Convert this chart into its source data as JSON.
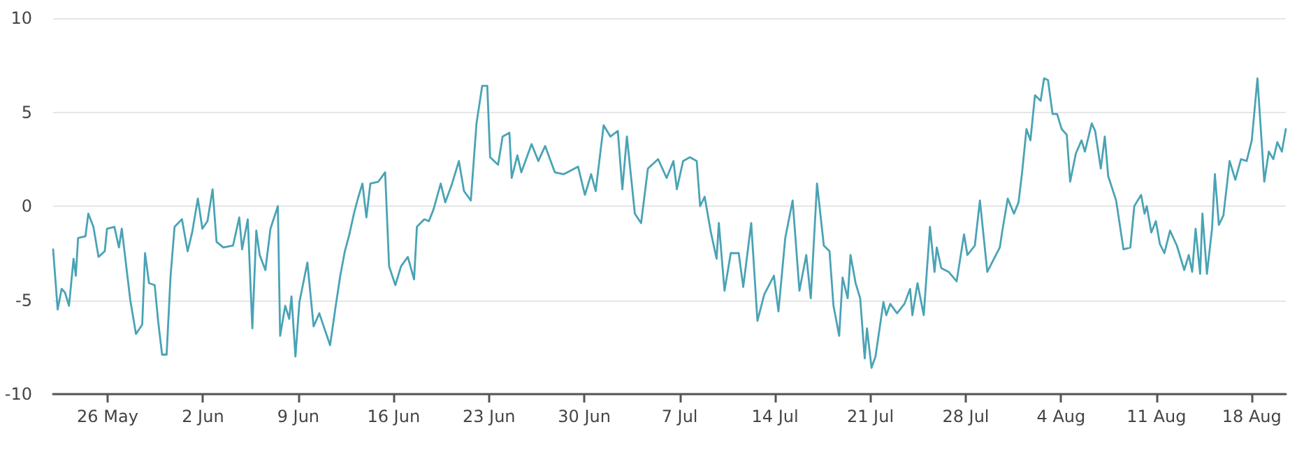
{
  "chart_data": {
    "type": "line",
    "grid": "y",
    "marker": "none",
    "line_style": "solid",
    "xlim": [
      "--05-22T00:00",
      "--08-20T12:00"
    ],
    "xticks": [
      {
        "value": "--05-26",
        "label": "26 May"
      },
      {
        "value": "--06-02",
        "label": "2 Jun"
      },
      {
        "value": "--06-09",
        "label": "9 Jun"
      },
      {
        "value": "--06-16",
        "label": "16 Jun"
      },
      {
        "value": "--06-23",
        "label": "23 Jun"
      },
      {
        "value": "--06-30",
        "label": "30 Jun"
      },
      {
        "value": "--07-07",
        "label": "7 Jul"
      },
      {
        "value": "--07-14",
        "label": "14 Jul"
      },
      {
        "value": "--07-21",
        "label": "21 Jul"
      },
      {
        "value": "--07-28",
        "label": "28 Jul"
      },
      {
        "value": "--08-04",
        "label": "4 Aug"
      },
      {
        "value": "--08-11",
        "label": "11 Aug"
      },
      {
        "value": "--08-18",
        "label": "18 Aug"
      }
    ],
    "ylim": [
      -10,
      10
    ],
    "yticks": [
      -10,
      -5,
      0,
      5,
      10
    ],
    "x": [
      "--05-22T00:00",
      "--05-22T08:00",
      "--05-22T15:00",
      "--05-22T21:00",
      "--05-23T04:00",
      "--05-23T12:00",
      "--05-23T16:00",
      "--05-23T20:00",
      "--05-24T09:00",
      "--05-24T14:00",
      "--05-24T23:00",
      "--05-25T08:00",
      "--05-25T19:00",
      "--05-25T23:00",
      "--05-26T12:00",
      "--05-26T20:00",
      "--05-27T01:00",
      "--05-27T16:00",
      "--05-28T02:00",
      "--05-28T13:00",
      "--05-28T18:00",
      "--05-29T01:00",
      "--05-29T11:00",
      "--05-29T17:00",
      "--05-30T00:00",
      "--05-30T08:00",
      "--05-30T15:00",
      "--05-30T22:00",
      "--05-31T11:00",
      "--05-31T21:00",
      "--06-01T05:00",
      "--06-01T15:00",
      "--06-01T23:00",
      "--06-02T08:00",
      "--06-02T17:00",
      "--06-03T00:00",
      "--06-03T12:00",
      "--06-04T05:00",
      "--06-04T16:00",
      "--06-04T21:00",
      "--06-05T07:00",
      "--06-05T15:00",
      "--06-05T22:00",
      "--06-06T04:00",
      "--06-06T14:00",
      "--06-06T23:00",
      "--06-07T12:00",
      "--06-07T16:00",
      "--06-08T01:00",
      "--06-08T08:00",
      "--06-08T12:00",
      "--06-08T19:00",
      "--06-09T02:00",
      "--06-09T16:00",
      "--06-10T03:00",
      "--06-10T13:00",
      "--06-11T08:00",
      "--06-11T18:00",
      "--06-12T02:00",
      "--06-12T10:00",
      "--06-12T18:00",
      "--06-13T02:00",
      "--06-13T09:00",
      "--06-13T17:00",
      "--06-14T00:00",
      "--06-14T07:00",
      "--06-14T21:00",
      "--06-15T09:00",
      "--06-15T16:00",
      "--06-16T03:00",
      "--06-16T13:00",
      "--06-17T01:00",
      "--06-17T12:00",
      "--06-17T17:00",
      "--06-18T06:00",
      "--06-18T14:00",
      "--06-18T22:00",
      "--06-19T11:00",
      "--06-19T19:00",
      "--06-20T07:00",
      "--06-20T19:00",
      "--06-21T04:00",
      "--06-21T16:00",
      "--06-22T02:00",
      "--06-22T12:00",
      "--06-22T21:00",
      "--06-23T02:00",
      "--06-23T16:00",
      "--06-24T00:00",
      "--06-24T12:00",
      "--06-24T16:00",
      "--06-25T02:00",
      "--06-25T09:00",
      "--06-26T03:00",
      "--06-26T15:00",
      "--06-27T03:00",
      "--06-27T20:00",
      "--06-28T12:00",
      "--06-29T13:00",
      "--06-30T01:00",
      "--06-30T12:00",
      "--06-30T20:00",
      "--07-01T10:00",
      "--07-01T22:00",
      "--07-02T11:00",
      "--07-02T19:00",
      "--07-03T03:00",
      "--07-03T17:00",
      "--07-04T04:00",
      "--07-04T16:00",
      "--07-05T10:00",
      "--07-06T01:00",
      "--07-06T13:00",
      "--07-06T19:00",
      "--07-07T06:00",
      "--07-07T18:00",
      "--07-08T06:00",
      "--07-08T12:00",
      "--07-08T20:00",
      "--07-09T07:00",
      "--07-09T17:00",
      "--07-09T21:00",
      "--07-10T07:00",
      "--07-10T18:00",
      "--07-11T08:00",
      "--07-11T16:00",
      "--07-12T06:00",
      "--07-12T17:00",
      "--07-13T05:00",
      "--07-13T22:00",
      "--07-14T06:00",
      "--07-14T18:00",
      "--07-15T07:00",
      "--07-15T19:00",
      "--07-16T07:00",
      "--07-16T15:00",
      "--07-17T02:00",
      "--07-17T14:00",
      "--07-18T00:00",
      "--07-18T07:00",
      "--07-18T17:00",
      "--07-18T23:00",
      "--07-19T08:00",
      "--07-19T13:00",
      "--07-19T22:00",
      "--07-20T06:00",
      "--07-20T14:00",
      "--07-20T18:00",
      "--07-21T02:00",
      "--07-21T09:00",
      "--07-21T23:00",
      "--07-22T04:00",
      "--07-22T11:00",
      "--07-22T23:00",
      "--07-23T12:00",
      "--07-23T22:00",
      "--07-24T02:00",
      "--07-24T11:00",
      "--07-24T22:00",
      "--07-25T09:00",
      "--07-25T17:00",
      "--07-25T21:00",
      "--07-26T05:00",
      "--07-26T18:00",
      "--07-27T08:00",
      "--07-27T21:00",
      "--07-28T03:00",
      "--07-28T16:00",
      "--07-29T01:00",
      "--07-29T14:00",
      "--07-30T00:00",
      "--07-30T12:00",
      "--07-30T16:00",
      "--07-31T02:00",
      "--07-31T13:00",
      "--07-31T21:00",
      "--08-01T03:00",
      "--08-01T11:00",
      "--08-01T18:00",
      "--08-02T02:00",
      "--08-02T12:00",
      "--08-02T18:00",
      "--08-03T01:00",
      "--08-03T09:00",
      "--08-03T17:00",
      "--08-04T01:00",
      "--08-04T10:00",
      "--08-04T16:00",
      "--08-05T02:00",
      "--08-05T12:00",
      "--08-05T18:00",
      "--08-06T06:00",
      "--08-06T12:00",
      "--08-06T22:00",
      "--08-07T05:00",
      "--08-07T11:00",
      "--08-08T01:00",
      "--08-08T14:00",
      "--08-09T02:00",
      "--08-09T09:00",
      "--08-09T21:00",
      "--08-10T03:00",
      "--08-10T07:00",
      "--08-10T15:00",
      "--08-10T23:00",
      "--08-11T06:00",
      "--08-11T14:00",
      "--08-12T00:00",
      "--08-12T12:00",
      "--08-13T01:00",
      "--08-13T09:00",
      "--08-13T15:00",
      "--08-13T21:00",
      "--08-14T05:00",
      "--08-14T09:00",
      "--08-14T17:00",
      "--08-15T02:00",
      "--08-15T07:00",
      "--08-15T14:00",
      "--08-15T22:00",
      "--08-16T09:00",
      "--08-16T19:00",
      "--08-17T05:00",
      "--08-17T15:00",
      "--08-18T00:00",
      "--08-18T10:00",
      "--08-18T22:00",
      "--08-19T06:00",
      "--08-19T14:00",
      "--08-19T21:00",
      "--08-20T05:00",
      "--08-20T12:00"
    ],
    "series": [
      {
        "color": "#4aa3b5",
        "values": [
          -2.3,
          -5.5,
          -4.4,
          -4.6,
          -5.3,
          -2.8,
          -3.7,
          -1.7,
          -1.6,
          -0.4,
          -1.1,
          -2.7,
          -2.4,
          -1.2,
          -1.1,
          -2.2,
          -1.2,
          -5.0,
          -6.8,
          -6.3,
          -2.5,
          -4.1,
          -4.2,
          -6.1,
          -7.9,
          -7.9,
          -3.7,
          -1.1,
          -0.7,
          -2.4,
          -1.4,
          0.4,
          -1.2,
          -0.8,
          0.9,
          -1.9,
          -2.2,
          -2.1,
          -0.6,
          -2.3,
          -0.7,
          -6.5,
          -1.3,
          -2.6,
          -3.4,
          -1.2,
          0,
          -6.9,
          -5.3,
          -6.0,
          -4.8,
          -8.0,
          -5.1,
          -3.0,
          -6.4,
          -5.7,
          -7.4,
          -5.3,
          -3.7,
          -2.4,
          -1.5,
          -0.4,
          0.4,
          1.2,
          -0.6,
          1.2,
          1.3,
          1.8,
          -3.2,
          -4.2,
          -3.2,
          -2.7,
          -3.9,
          -1.1,
          -0.7,
          -0.8,
          -0.2,
          1.2,
          0.2,
          1.2,
          2.4,
          0.8,
          0.3,
          4.4,
          6.4,
          6.4,
          2.6,
          2.2,
          3.7,
          3.9,
          1.5,
          2.7,
          1.8,
          3.3,
          2.4,
          3.2,
          1.8,
          1.7,
          2.1,
          0.6,
          1.7,
          0.8,
          4.3,
          3.7,
          4.0,
          0.9,
          3.7,
          -0.4,
          -0.9,
          2.0,
          2.5,
          1.5,
          2.4,
          0.9,
          2.4,
          2.6,
          2.4,
          0,
          0.5,
          -1.4,
          -2.8,
          -0.9,
          -4.5,
          -2.5,
          -2.5,
          -4.3,
          -0.9,
          -6.1,
          -4.7,
          -3.7,
          -5.6,
          -1.7,
          0.3,
          -4.5,
          -2.6,
          -4.9,
          1.2,
          -2.1,
          -2.4,
          -5.3,
          -6.9,
          -3.8,
          -4.9,
          -2.6,
          -4.1,
          -4.9,
          -8.1,
          -6.5,
          -8.6,
          -8.0,
          -5.1,
          -5.8,
          -5.2,
          -5.7,
          -5.2,
          -4.4,
          -5.8,
          -4.1,
          -5.8,
          -1.1,
          -3.5,
          -2.2,
          -3.3,
          -3.5,
          -4.0,
          -1.5,
          -2.6,
          -2.1,
          0.3,
          -3.5,
          -2.9,
          -2.2,
          -1.4,
          0.4,
          -0.4,
          0.2,
          1.7,
          4.1,
          3.5,
          5.9,
          5.6,
          6.8,
          6.7,
          4.9,
          4.9,
          4.1,
          3.8,
          1.3,
          2.8,
          3.5,
          2.9,
          4.4,
          4.0,
          2.0,
          3.7,
          1.6,
          0.3,
          -2.3,
          -2.2,
          0,
          0.6,
          -0.4,
          0,
          -1.4,
          -0.8,
          -2.0,
          -2.5,
          -1.3,
          -2.1,
          -3.4,
          -2.6,
          -3.5,
          -1.2,
          -3.6,
          -0.4,
          -3.6,
          -1.2,
          1.7,
          -1.0,
          -0.5,
          2.4,
          1.4,
          2.5,
          2.4,
          3.5,
          6.8,
          1.3,
          2.9,
          2.5,
          3.4,
          2.9,
          4.1
        ]
      }
    ]
  }
}
